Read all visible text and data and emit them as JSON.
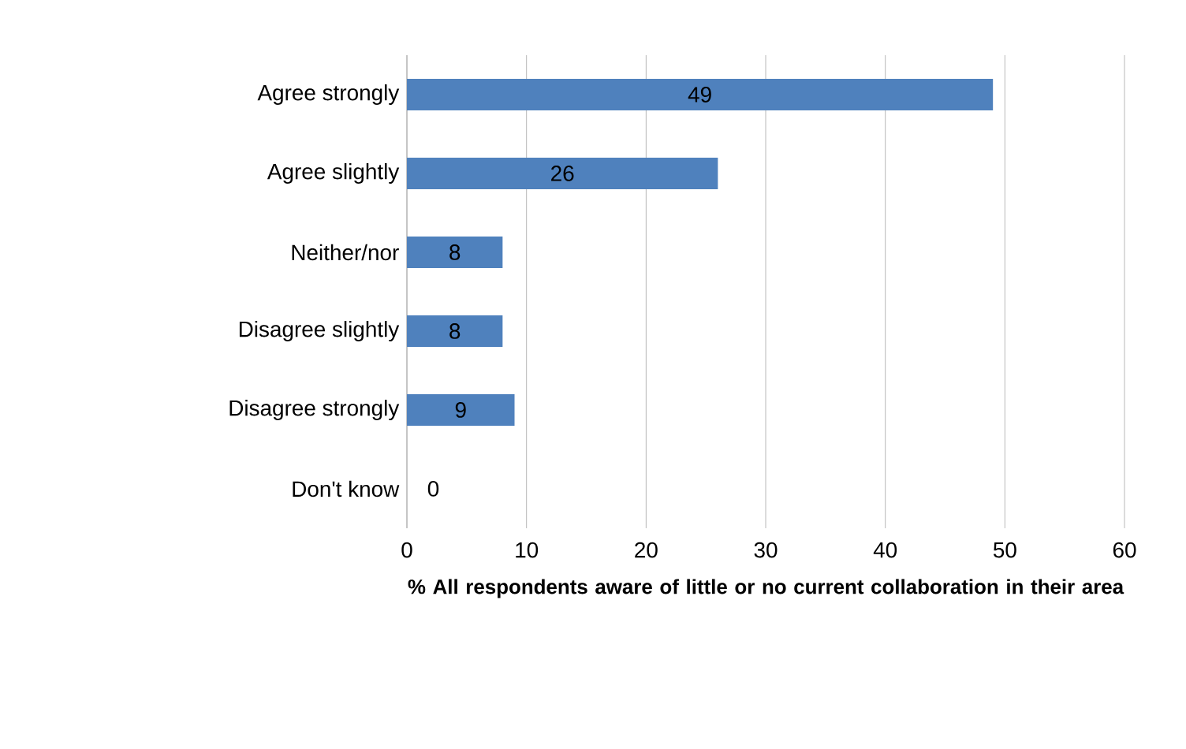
{
  "chart_data": {
    "type": "bar",
    "orientation": "horizontal",
    "xlabel": "% All respondents aware of little or no current collaboration in their area",
    "categories": [
      "Agree strongly",
      "Agree slightly",
      "Neither/nor",
      "Disagree slightly",
      "Disagree strongly",
      "Don't know"
    ],
    "values": [
      49,
      26,
      8,
      8,
      9,
      0
    ],
    "color": "#4f81bd",
    "xlim": [
      0,
      60
    ],
    "xticks": [
      0,
      10,
      20,
      30,
      40,
      50,
      60
    ],
    "grid": "x",
    "data_labels": true
  }
}
